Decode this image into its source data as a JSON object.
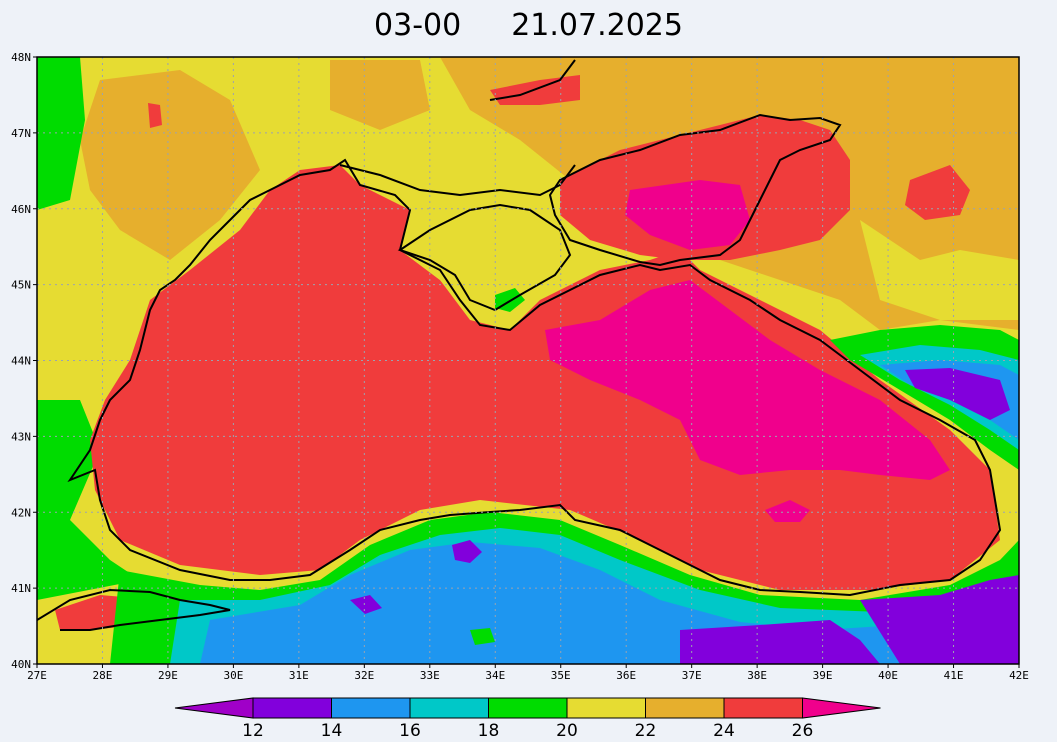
{
  "title": {
    "time": "03-00",
    "date": "21.07.2025"
  },
  "map": {
    "lon_range": [
      27,
      42
    ],
    "lat_range": [
      40,
      48
    ],
    "lon_ticks": [
      "27E",
      "28E",
      "29E",
      "30E",
      "31E",
      "32E",
      "33E",
      "34E",
      "35E",
      "36E",
      "37E",
      "38E",
      "39E",
      "40E",
      "41E",
      "42E"
    ],
    "lat_ticks": [
      "40N",
      "41N",
      "42N",
      "43N",
      "44N",
      "45N",
      "46N",
      "47N",
      "48N"
    ],
    "grid": true
  },
  "colorbar": {
    "labels": [
      "12",
      "14",
      "16",
      "18",
      "20",
      "22",
      "24",
      "26"
    ],
    "colors": [
      "#a000c8",
      "#8200dc",
      "#1e96f0",
      "#00c8c8",
      "#00dc00",
      "#e6dc32",
      "#e6af2d",
      "#f03c3c",
      "#f0008c"
    ]
  }
}
